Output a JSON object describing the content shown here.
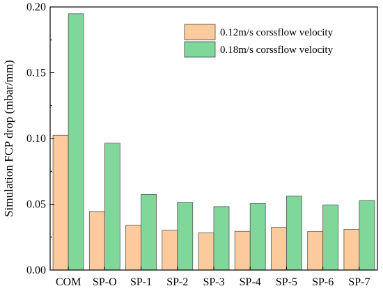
{
  "chart_data": {
    "type": "bar",
    "title": "",
    "xlabel": "",
    "ylabel": "Simulation FCP drop (mbar/mm)",
    "categories": [
      "COM",
      "SP-O",
      "SP-1",
      "SP-2",
      "SP-3",
      "SP-4",
      "SP-5",
      "SP-6",
      "SP-7"
    ],
    "series": [
      {
        "name": "0.12m/s corssflow velocity",
        "color": "#FDCB9B",
        "values": [
          0.1025,
          0.0445,
          0.0342,
          0.0302,
          0.0282,
          0.0295,
          0.0325,
          0.0293,
          0.031
        ]
      },
      {
        "name": "0.18m/s corssflow velocity",
        "color": "#7FD89A",
        "values": [
          0.1948,
          0.0965,
          0.0575,
          0.0515,
          0.0482,
          0.0505,
          0.0562,
          0.0495,
          0.0528
        ]
      }
    ],
    "ylim": [
      0,
      0.2
    ],
    "yticks": [
      "0.00",
      "0.05",
      "0.10",
      "0.15",
      "0.20"
    ],
    "ytick_values": [
      0,
      0.05,
      0.1,
      0.15,
      0.2
    ],
    "grid": false,
    "legend_position": "top-right"
  }
}
